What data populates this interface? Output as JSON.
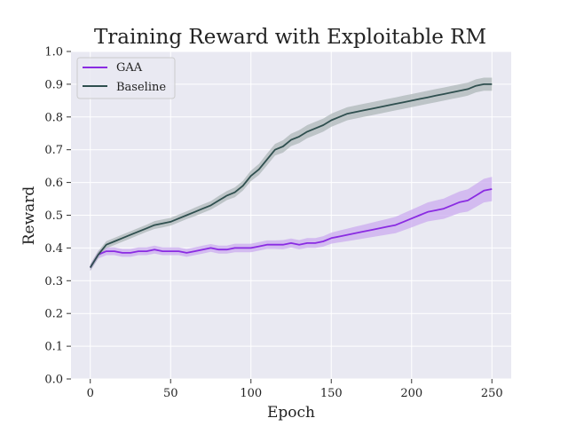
{
  "chart_data": {
    "type": "line",
    "title": "Training Reward with Exploitable RM",
    "xlabel": "Epoch",
    "ylabel": "Reward",
    "xlim": [
      -12,
      262
    ],
    "ylim": [
      0.0,
      1.0
    ],
    "xticks": [
      0,
      50,
      100,
      150,
      200,
      250
    ],
    "xtick_labels": [
      "0",
      "50",
      "100",
      "150",
      "200",
      "250"
    ],
    "yticks": [
      0.0,
      0.1,
      0.2,
      0.3,
      0.4,
      0.5,
      0.6,
      0.7,
      0.8,
      0.9,
      1.0
    ],
    "ytick_labels": [
      "0.0",
      "0.1",
      "0.2",
      "0.3",
      "0.4",
      "0.5",
      "0.6",
      "0.7",
      "0.8",
      "0.9",
      "1.0"
    ],
    "grid": true,
    "legend_position": "top-left",
    "background_color": "#e9e9f2",
    "series": [
      {
        "name": "GAA",
        "color": "#8a2be2",
        "band_color": "#c9a6ef",
        "x": [
          0,
          5,
          10,
          15,
          20,
          25,
          30,
          35,
          40,
          45,
          50,
          55,
          60,
          65,
          70,
          75,
          80,
          85,
          90,
          95,
          100,
          105,
          110,
          115,
          120,
          125,
          130,
          135,
          140,
          145,
          150,
          155,
          160,
          165,
          170,
          175,
          180,
          185,
          190,
          195,
          200,
          205,
          210,
          215,
          220,
          225,
          230,
          235,
          240,
          245,
          250
        ],
        "values": [
          0.34,
          0.38,
          0.39,
          0.39,
          0.385,
          0.385,
          0.39,
          0.39,
          0.395,
          0.39,
          0.39,
          0.39,
          0.385,
          0.39,
          0.395,
          0.4,
          0.395,
          0.395,
          0.4,
          0.4,
          0.4,
          0.405,
          0.41,
          0.41,
          0.41,
          0.415,
          0.41,
          0.415,
          0.415,
          0.42,
          0.43,
          0.435,
          0.44,
          0.445,
          0.45,
          0.455,
          0.46,
          0.465,
          0.47,
          0.48,
          0.49,
          0.5,
          0.51,
          0.515,
          0.52,
          0.53,
          0.54,
          0.545,
          0.56,
          0.575,
          0.58
        ],
        "band": [
          0.01,
          0.012,
          0.012,
          0.012,
          0.012,
          0.012,
          0.012,
          0.012,
          0.012,
          0.012,
          0.012,
          0.012,
          0.012,
          0.012,
          0.012,
          0.012,
          0.012,
          0.012,
          0.013,
          0.013,
          0.013,
          0.013,
          0.013,
          0.013,
          0.014,
          0.014,
          0.014,
          0.015,
          0.015,
          0.016,
          0.017,
          0.018,
          0.019,
          0.02,
          0.021,
          0.022,
          0.023,
          0.024,
          0.025,
          0.026,
          0.027,
          0.028,
          0.029,
          0.03,
          0.031,
          0.032,
          0.033,
          0.034,
          0.035,
          0.036,
          0.037
        ]
      },
      {
        "name": "Baseline",
        "color": "#2f4f4f",
        "band_color": "#a9b3b5",
        "x": [
          0,
          5,
          10,
          15,
          20,
          25,
          30,
          35,
          40,
          45,
          50,
          55,
          60,
          65,
          70,
          75,
          80,
          85,
          90,
          95,
          100,
          105,
          110,
          115,
          120,
          125,
          130,
          135,
          140,
          145,
          150,
          155,
          160,
          165,
          170,
          175,
          180,
          185,
          190,
          195,
          200,
          205,
          210,
          215,
          220,
          225,
          230,
          235,
          240,
          245,
          250
        ],
        "values": [
          0.34,
          0.38,
          0.41,
          0.42,
          0.43,
          0.44,
          0.45,
          0.46,
          0.47,
          0.475,
          0.48,
          0.49,
          0.5,
          0.51,
          0.52,
          0.53,
          0.545,
          0.56,
          0.57,
          0.59,
          0.62,
          0.64,
          0.67,
          0.7,
          0.71,
          0.73,
          0.74,
          0.755,
          0.765,
          0.775,
          0.79,
          0.8,
          0.81,
          0.815,
          0.82,
          0.825,
          0.83,
          0.835,
          0.84,
          0.845,
          0.85,
          0.855,
          0.86,
          0.865,
          0.87,
          0.875,
          0.88,
          0.885,
          0.895,
          0.9,
          0.9
        ],
        "band": [
          0.01,
          0.011,
          0.011,
          0.011,
          0.011,
          0.011,
          0.011,
          0.011,
          0.012,
          0.012,
          0.012,
          0.012,
          0.012,
          0.013,
          0.013,
          0.013,
          0.014,
          0.014,
          0.015,
          0.015,
          0.016,
          0.017,
          0.018,
          0.018,
          0.019,
          0.019,
          0.02,
          0.02,
          0.02,
          0.02,
          0.02,
          0.02,
          0.02,
          0.02,
          0.02,
          0.02,
          0.02,
          0.02,
          0.02,
          0.02,
          0.02,
          0.02,
          0.02,
          0.02,
          0.02,
          0.02,
          0.02,
          0.02,
          0.02,
          0.02,
          0.02
        ]
      }
    ]
  }
}
